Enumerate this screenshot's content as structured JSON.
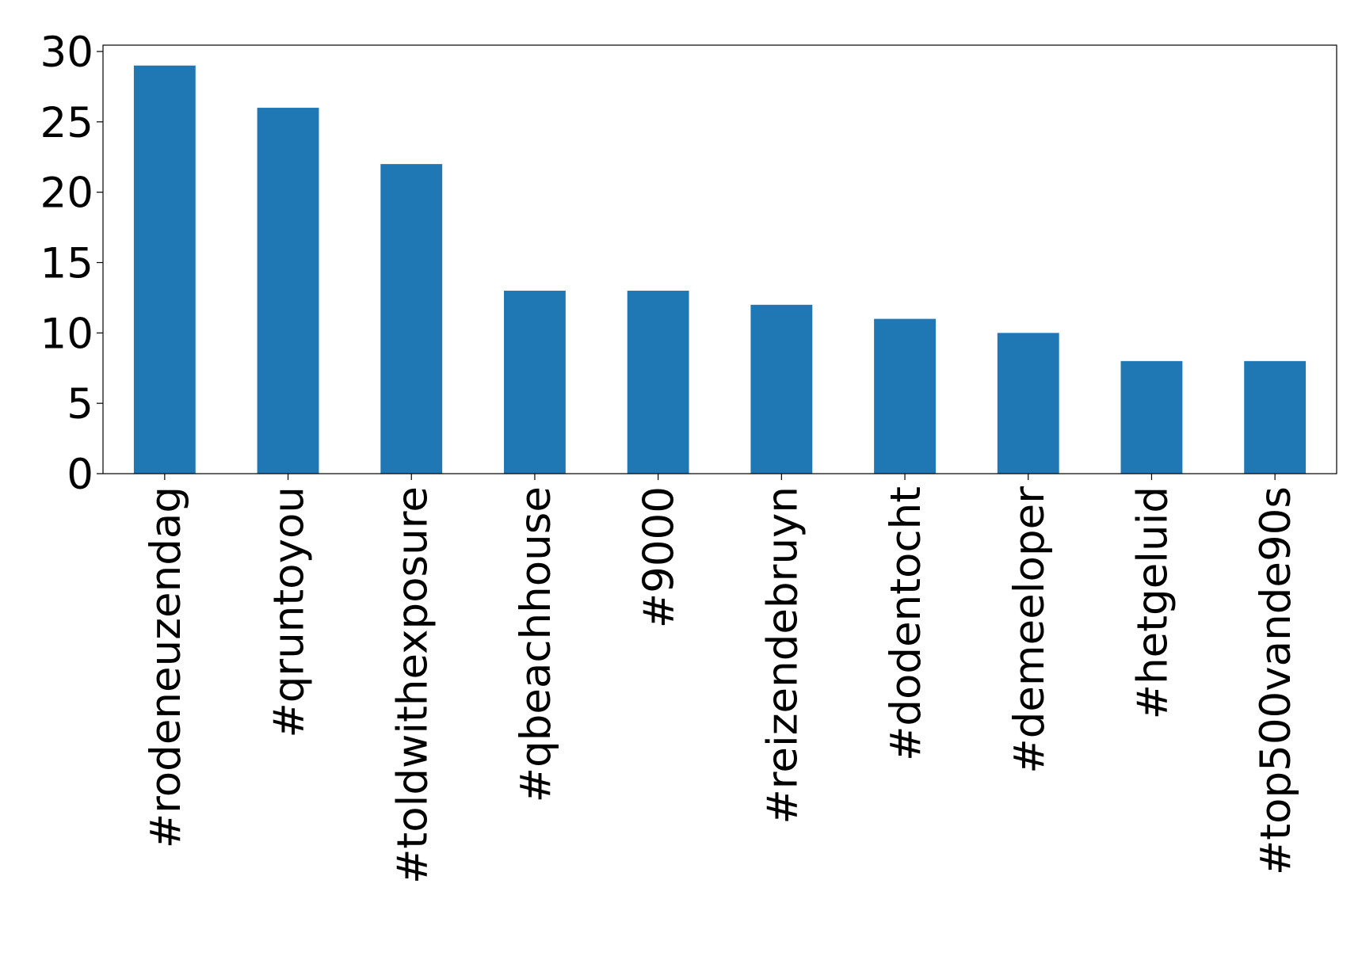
{
  "chart_data": {
    "type": "bar",
    "categories": [
      "#rodeneuzendag",
      "#qruntoyou",
      "#toldwithexposure",
      "#qbeachhouse",
      "#9000",
      "#reizendebruyn",
      "#dodentocht",
      "#demeeloper",
      "#hetgeluid",
      "#top500vande90s"
    ],
    "values": [
      29,
      26,
      22,
      13,
      13,
      12,
      11,
      10,
      8,
      8
    ],
    "color": "#1f77b4",
    "ylim": [
      0,
      30.45
    ],
    "yticks": [
      0,
      5,
      10,
      15,
      20,
      25,
      30
    ],
    "grid": false
  }
}
